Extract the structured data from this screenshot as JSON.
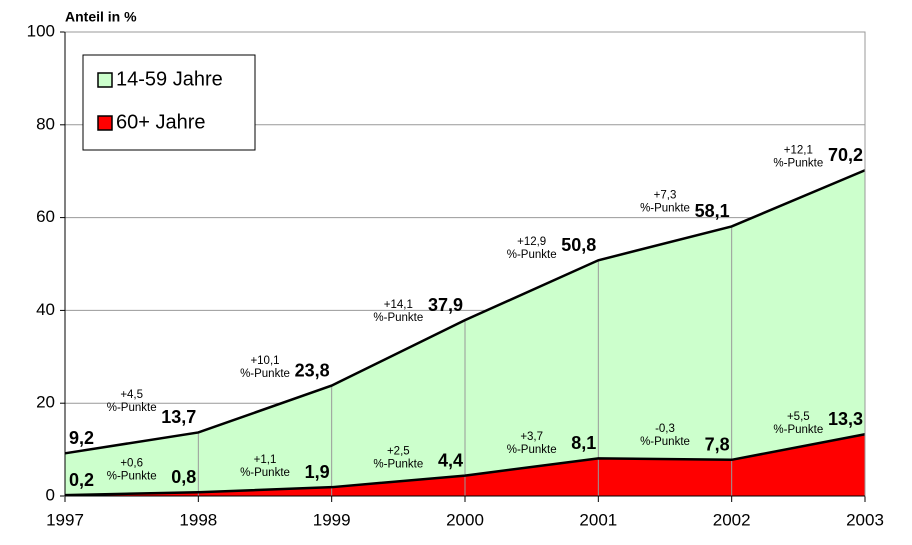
{
  "chart_data": {
    "type": "area",
    "y_axis_label": "Anteil in %",
    "x": [
      1997,
      1998,
      1999,
      2000,
      2001,
      2002,
      2003
    ],
    "xlim": [
      1997,
      2003
    ],
    "xticks": [
      1997,
      1998,
      1999,
      2000,
      2001,
      2002,
      2003
    ],
    "ylim": [
      0,
      100
    ],
    "yticks": [
      0,
      20,
      40,
      60,
      80,
      100
    ],
    "grid": true,
    "legend": "upper left",
    "series": [
      {
        "name": "14-59 Jahre",
        "color": "#ccffcc",
        "values": [
          9.2,
          13.7,
          23.8,
          37.9,
          50.8,
          58.1,
          70.2
        ],
        "value_labels": [
          "9,2",
          "13,7",
          "23,8",
          "37,9",
          "50,8",
          "58,1",
          "70,2"
        ],
        "annotations": [
          [
            "+4,5",
            "%-Punkte"
          ],
          [
            "+10,1",
            "%-Punkte"
          ],
          [
            "+14,1",
            "%-Punkte"
          ],
          [
            "+12,9",
            "%-Punkte"
          ],
          [
            "+7,3",
            "%-Punkte"
          ],
          [
            "+12,1",
            "%-Punkte"
          ]
        ]
      },
      {
        "name": "60+ Jahre",
        "color": "#ff0000",
        "values": [
          0.2,
          0.8,
          1.9,
          4.4,
          8.1,
          7.8,
          13.3
        ],
        "value_labels": [
          "0,2",
          "0,8",
          "1,9",
          "4,4",
          "8,1",
          "7,8",
          "13,3"
        ],
        "annotations": [
          [
            "+0,6",
            "%-Punkte"
          ],
          [
            "+1,1",
            "%-Punkte"
          ],
          [
            "+2,5",
            "%-Punkte"
          ],
          [
            "+3,7",
            "%-Punkte"
          ],
          [
            "-0,3",
            "%-Punkte"
          ],
          [
            "+5,5",
            "%-Punkte"
          ]
        ]
      }
    ]
  }
}
